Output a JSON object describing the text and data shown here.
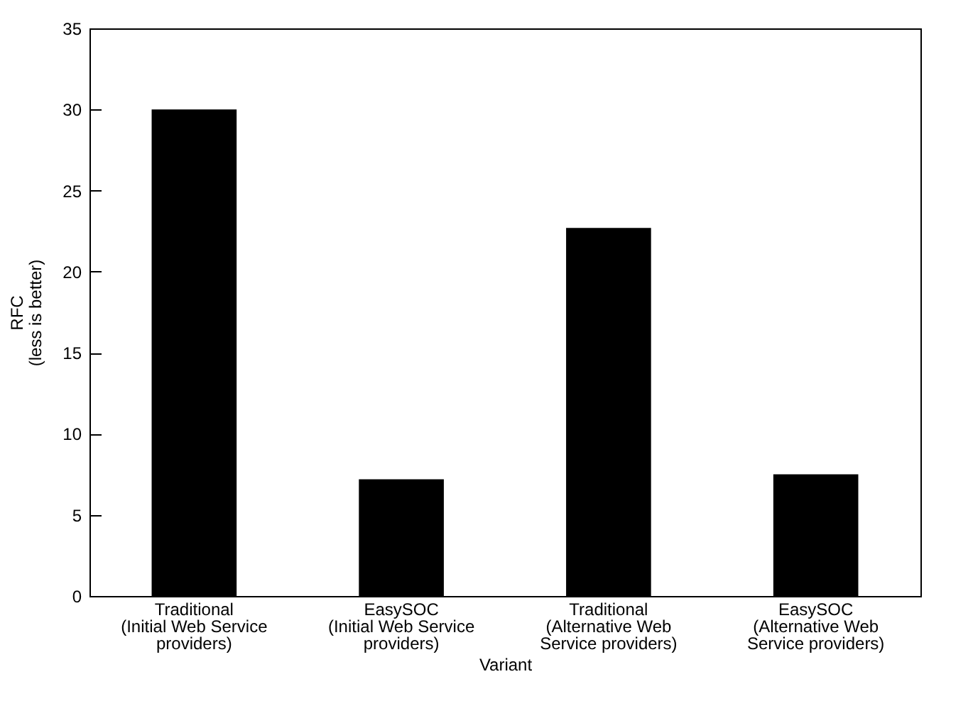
{
  "chart_data": {
    "type": "bar",
    "xlabel": "Variant",
    "ylabel": "RFC\n(less is better)",
    "categories": [
      "Traditional\n(Initial Web Service\nproviders)",
      "EasySOC\n(Initial Web Service\nproviders)",
      "Traditional\n(Alternative Web\nService providers)",
      "EasySOC\n(Alternative Web\nService providers)"
    ],
    "values": [
      30,
      7.2,
      22.7,
      7.5
    ],
    "color": "#000000",
    "ylim": [
      0,
      35
    ],
    "yticks": [
      0,
      5,
      10,
      15,
      20,
      25,
      30,
      35
    ],
    "grid": false
  }
}
